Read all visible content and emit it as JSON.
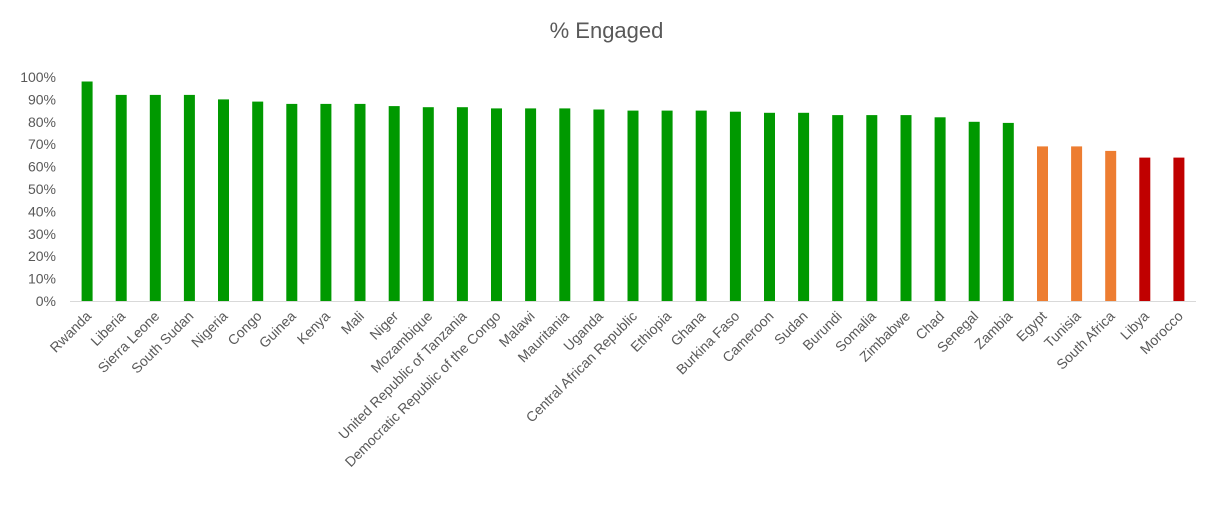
{
  "chart_data": {
    "type": "bar",
    "title": "% Engaged",
    "xlabel": "",
    "ylabel": "",
    "ylim": [
      0,
      100
    ],
    "yticks": [
      0,
      10,
      20,
      30,
      40,
      50,
      60,
      70,
      80,
      90,
      100
    ],
    "ytick_labels": [
      "0%",
      "10%",
      "20%",
      "30%",
      "40%",
      "50%",
      "60%",
      "70%",
      "80%",
      "90%",
      "100%"
    ],
    "grid": false,
    "legend": "none",
    "categories": [
      "Rwanda",
      "Liberia",
      "Sierra Leone",
      "South Sudan",
      "Nigeria",
      "Congo",
      "Guinea",
      "Kenya",
      "Mali",
      "Niger",
      "Mozambique",
      "United Republic of Tanzania",
      "Democratic Republic of the Congo",
      "Malawi",
      "Mauritania",
      "Uganda",
      "Central African Republic",
      "Ethiopia",
      "Ghana",
      "Burkina Faso",
      "Cameroon",
      "Sudan",
      "Burundi",
      "Somalia",
      "Zimbabwe",
      "Chad",
      "Senegal",
      "Zambia",
      "Egypt",
      "Tunisia",
      "South Africa",
      "Libya",
      "Morocco"
    ],
    "values": [
      98,
      92,
      92,
      92,
      90,
      89,
      88,
      88,
      88,
      87,
      86.5,
      86.5,
      86,
      86,
      86,
      85.5,
      85,
      85,
      85,
      84.5,
      84,
      84,
      83,
      83,
      83,
      82,
      80,
      79.5,
      69,
      69,
      67,
      64,
      64
    ],
    "bar_colors": [
      "#009900",
      "#009900",
      "#009900",
      "#009900",
      "#009900",
      "#009900",
      "#009900",
      "#009900",
      "#009900",
      "#009900",
      "#009900",
      "#009900",
      "#009900",
      "#009900",
      "#009900",
      "#009900",
      "#009900",
      "#009900",
      "#009900",
      "#009900",
      "#009900",
      "#009900",
      "#009900",
      "#009900",
      "#009900",
      "#009900",
      "#009900",
      "#009900",
      "#ED7D31",
      "#ED7D31",
      "#ED7D31",
      "#C00000",
      "#C00000"
    ],
    "axis_color": "#D9D9D9",
    "text_color": "#595959"
  }
}
